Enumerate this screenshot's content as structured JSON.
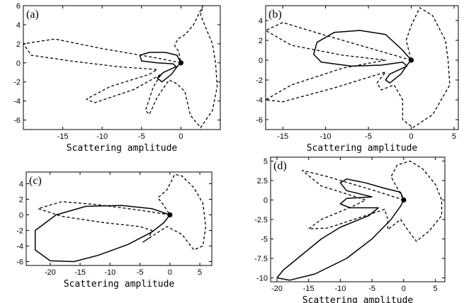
{
  "chart_data": [
    {
      "panel": "(a)",
      "type": "line",
      "xlabel": "Scattering amplitude",
      "xlim": [
        -20,
        5
      ],
      "ylim": [
        -7,
        6
      ],
      "xticks": [
        -15,
        -10,
        -5,
        0
      ],
      "yticks": [
        -6,
        -4,
        -2,
        0,
        2,
        4,
        6
      ],
      "point": [
        0,
        0
      ],
      "series": [
        {
          "style": "solid",
          "points": [
            [
              0,
              0
            ],
            [
              -0.5,
              0.8
            ],
            [
              -2,
              1.1
            ],
            [
              -4,
              1.1
            ],
            [
              -5.2,
              0.8
            ],
            [
              -5,
              0.2
            ],
            [
              -3,
              0
            ],
            [
              -1,
              -0.1
            ],
            [
              -0.6,
              -0.4
            ],
            [
              -2.2,
              -1
            ],
            [
              -3,
              -1.6
            ],
            [
              -2.4,
              -2
            ],
            [
              -1.2,
              -1.2
            ],
            [
              -0.4,
              -0.3
            ],
            [
              0,
              0
            ]
          ]
        },
        {
          "style": "dashed",
          "points": [
            [
              0,
              0
            ],
            [
              -3,
              0.5
            ],
            [
              -10,
              1.5
            ],
            [
              -16,
              2.5
            ],
            [
              -20,
              2
            ],
            [
              -19,
              0.8
            ],
            [
              -14,
              0.2
            ],
            [
              -8,
              -0.4
            ],
            [
              -3,
              -0.7
            ],
            [
              -4,
              -1.2
            ],
            [
              -9,
              -2.5
            ],
            [
              -12,
              -3.8
            ],
            [
              -11,
              -4.2
            ],
            [
              -6,
              -2.8
            ],
            [
              -2.5,
              -1.2
            ],
            [
              -3.5,
              -2.5
            ],
            [
              -4.5,
              -5
            ],
            [
              -4,
              -5.4
            ],
            [
              -3,
              -3.6
            ],
            [
              -1.5,
              -1.8
            ],
            [
              -0.5,
              -2.2
            ],
            [
              0.5,
              -3
            ],
            [
              1.2,
              -5.5
            ],
            [
              2.5,
              -6.8
            ],
            [
              4,
              -5
            ],
            [
              4.6,
              -2.5
            ],
            [
              4.4,
              0
            ],
            [
              4,
              2
            ],
            [
              2.5,
              5
            ],
            [
              2.8,
              6
            ],
            [
              1.6,
              4
            ],
            [
              0.6,
              3
            ],
            [
              -0.4,
              2.5
            ],
            [
              -0.8,
              1.8
            ],
            [
              -0.3,
              1.2
            ],
            [
              0,
              0
            ]
          ]
        }
      ]
    },
    {
      "panel": "(b)",
      "type": "line",
      "xlabel": "Scattering amplitude",
      "xlim": [
        -17,
        5.5
      ],
      "ylim": [
        -7,
        5.5
      ],
      "xticks": [
        -15,
        -10,
        -5,
        0,
        5
      ],
      "yticks": [
        -6,
        -4,
        -2,
        0,
        2,
        4
      ],
      "point": [
        0,
        0
      ],
      "series": [
        {
          "style": "solid",
          "points": [
            [
              0,
              0
            ],
            [
              -1,
              1
            ],
            [
              -3,
              2.6
            ],
            [
              -6,
              3
            ],
            [
              -9,
              2.8
            ],
            [
              -11,
              1.8
            ],
            [
              -11.4,
              0.6
            ],
            [
              -10.5,
              -0.2
            ],
            [
              -7,
              -0.6
            ],
            [
              -3.5,
              -0.5
            ],
            [
              -1,
              -0.2
            ],
            [
              -0.5,
              -0.6
            ],
            [
              -2.5,
              -1.4
            ],
            [
              -3,
              -2
            ],
            [
              -2.5,
              -2.3
            ],
            [
              -1.2,
              -1.4
            ],
            [
              -0.5,
              -0.5
            ],
            [
              0,
              0
            ]
          ]
        },
        {
          "style": "dashed",
          "points": [
            [
              0,
              0
            ],
            [
              -4,
              1
            ],
            [
              -10,
              2.5
            ],
            [
              -15,
              3.8
            ],
            [
              -17,
              3
            ],
            [
              -14,
              1.5
            ],
            [
              -8,
              0.5
            ],
            [
              -3,
              0
            ],
            [
              -8,
              -0.8
            ],
            [
              -14,
              -2.5
            ],
            [
              -17,
              -4
            ],
            [
              -15,
              -4.2
            ],
            [
              -9,
              -2.8
            ],
            [
              -3,
              -1.2
            ],
            [
              -4,
              -2.3
            ],
            [
              -3.5,
              -3
            ],
            [
              -2,
              -2.5
            ],
            [
              -1,
              -4
            ],
            [
              -1,
              -6
            ],
            [
              0.2,
              -6.8
            ],
            [
              2.5,
              -5.5
            ],
            [
              4.5,
              -2.5
            ],
            [
              4.3,
              0
            ],
            [
              4,
              2
            ],
            [
              2.5,
              4.5
            ],
            [
              1,
              5.3
            ],
            [
              0,
              3.5
            ],
            [
              -0.6,
              2
            ],
            [
              -0.3,
              1
            ],
            [
              0,
              0
            ]
          ]
        }
      ]
    },
    {
      "panel": "(c)",
      "type": "line",
      "xlabel": "Scattering amplitude",
      "xlim": [
        -24,
        7
      ],
      "ylim": [
        -6.5,
        5.5
      ],
      "xticks": [
        -20,
        -15,
        -10,
        -5,
        0,
        5
      ],
      "yticks": [
        -6,
        -4,
        -2,
        0,
        2,
        4
      ],
      "point": [
        0,
        0
      ],
      "series": [
        {
          "style": "solid",
          "points": [
            [
              0,
              0
            ],
            [
              -3,
              0.8
            ],
            [
              -8,
              1.2
            ],
            [
              -14,
              1.1
            ],
            [
              -19,
              0
            ],
            [
              -22.5,
              -2
            ],
            [
              -22.5,
              -4.5
            ],
            [
              -20,
              -5.9
            ],
            [
              -16,
              -6
            ],
            [
              -12,
              -5.2
            ],
            [
              -7,
              -3.8
            ],
            [
              -3,
              -2.2
            ],
            [
              -1,
              -1
            ],
            [
              0,
              0
            ]
          ]
        },
        {
          "style": "dashed",
          "points": [
            [
              0,
              0
            ],
            [
              -5,
              0.6
            ],
            [
              -12,
              1.3
            ],
            [
              -18,
              1.7
            ],
            [
              -22,
              0.8
            ],
            [
              -18,
              -0.2
            ],
            [
              -11,
              -1
            ],
            [
              -5,
              -1.5
            ],
            [
              -3,
              -2
            ],
            [
              -3.5,
              -3
            ],
            [
              -4.5,
              -3.5
            ],
            [
              -2.5,
              -2.5
            ],
            [
              -0.5,
              -1.5
            ],
            [
              2,
              -2.5
            ],
            [
              4,
              -4.5
            ],
            [
              5.5,
              -4
            ],
            [
              6,
              -1.5
            ],
            [
              5.5,
              1.5
            ],
            [
              4,
              3.5
            ],
            [
              2,
              5
            ],
            [
              0.8,
              5.2
            ],
            [
              -0.5,
              3.2
            ],
            [
              -2,
              2.2
            ],
            [
              -1,
              1.2
            ],
            [
              0,
              0
            ]
          ]
        }
      ]
    },
    {
      "panel": "(d)",
      "type": "line",
      "xlabel": "Scattering amplitude",
      "xlim": [
        -21,
        6.5
      ],
      "ylim": [
        -10.5,
        5.5
      ],
      "xticks": [
        -20,
        -15,
        -10,
        -5,
        0,
        5
      ],
      "yticks": [
        "5",
        "2.5",
        "0",
        "-2.5",
        "-5",
        "-7.5",
        "-10"
      ],
      "ytick_values": [
        5,
        2.5,
        0,
        -2.5,
        -5,
        -7.5,
        -10
      ],
      "point": [
        0,
        0
      ],
      "series": [
        {
          "style": "solid",
          "points": [
            [
              0,
              0
            ],
            [
              -0.5,
              1
            ],
            [
              -3,
              1.5
            ],
            [
              -6,
              2.2
            ],
            [
              -9,
              2.7
            ],
            [
              -10,
              2.2
            ],
            [
              -9,
              1.2
            ],
            [
              -5,
              0.4
            ],
            [
              -9,
              0.2
            ],
            [
              -10,
              -0.5
            ],
            [
              -8.5,
              -1
            ],
            [
              -4,
              -1
            ],
            [
              -5.5,
              -2
            ],
            [
              -10,
              -3.5
            ],
            [
              -13,
              -5
            ],
            [
              -16,
              -7
            ],
            [
              -19,
              -9
            ],
            [
              -20,
              -10
            ],
            [
              -18,
              -10.3
            ],
            [
              -14,
              -9.5
            ],
            [
              -9,
              -7.5
            ],
            [
              -5,
              -5
            ],
            [
              -2,
              -2.5
            ],
            [
              -0.5,
              -0.8
            ],
            [
              0,
              0
            ]
          ]
        },
        {
          "style": "dashed",
          "points": [
            [
              0,
              0
            ],
            [
              -5,
              1.3
            ],
            [
              -12,
              3
            ],
            [
              -16,
              3.8
            ],
            [
              -13,
              1.8
            ],
            [
              -6,
              0
            ],
            [
              -8,
              -0.8
            ],
            [
              -13,
              -2.5
            ],
            [
              -15,
              -3.7
            ],
            [
              -12,
              -3.6
            ],
            [
              -6,
              -2
            ],
            [
              -3,
              -1.2
            ],
            [
              -2.5,
              -2.5
            ],
            [
              -2.5,
              -3.8
            ],
            [
              -0.5,
              -2.5
            ],
            [
              0.8,
              -4
            ],
            [
              2,
              -5.3
            ],
            [
              4,
              -4
            ],
            [
              6,
              -2
            ],
            [
              6,
              0
            ],
            [
              5,
              2
            ],
            [
              3,
              4
            ],
            [
              1,
              5
            ],
            [
              -1,
              4.5
            ],
            [
              -2,
              3
            ],
            [
              -1,
              1.5
            ],
            [
              0,
              0
            ]
          ]
        }
      ]
    }
  ]
}
